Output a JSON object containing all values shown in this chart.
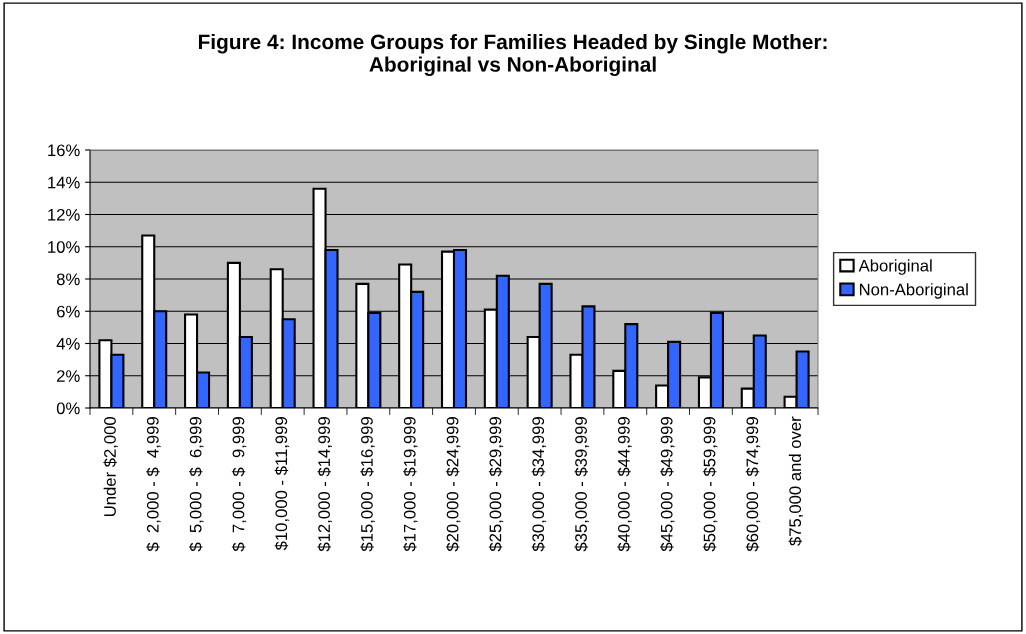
{
  "chart_data": {
    "type": "bar",
    "title": "Figure 4: Income Groups for Families Headed by Single Mother:\nAboriginal vs Non-Aboriginal",
    "categories": [
      "Under $2,000",
      "$  2,000 - $  4,999",
      "$  5,000 - $  6,999",
      "$  7,000 - $  9,999",
      "$10,000 - $11,999",
      "$12,000 - $14,999",
      "$15,000 - $16,999",
      "$17,000 - $19,999",
      "$20,000 - $24,999",
      "$25,000 - $29,999",
      "$30,000 - $34,999",
      "$35,000 - $39,999",
      "$40,000 - $44,999",
      "$45,000 - $49,999",
      "$50,000 - $59,999",
      "$60,000 - $74,999",
      "$75,000 and over"
    ],
    "series": [
      {
        "name": "Aboriginal",
        "color": "#ffffff",
        "values": [
          4.2,
          10.7,
          5.8,
          9.0,
          8.6,
          13.6,
          7.7,
          8.9,
          9.7,
          6.1,
          4.4,
          3.3,
          2.3,
          1.4,
          1.9,
          1.2,
          0.7
        ]
      },
      {
        "name": "Non-Aboriginal",
        "color": "#3366ff",
        "values": [
          3.3,
          6.0,
          2.2,
          4.4,
          5.5,
          9.8,
          5.9,
          7.2,
          9.8,
          8.2,
          7.7,
          6.3,
          5.2,
          4.1,
          5.9,
          4.5,
          3.5
        ]
      }
    ],
    "ylim": [
      0,
      16
    ],
    "yticks": [
      {
        "value": 0,
        "label": "0%"
      },
      {
        "value": 2,
        "label": "2%"
      },
      {
        "value": 4,
        "label": "4%"
      },
      {
        "value": 6,
        "label": "6%"
      },
      {
        "value": 8,
        "label": "8%"
      },
      {
        "value": 10,
        "label": "10%"
      },
      {
        "value": 12,
        "label": "12%"
      },
      {
        "value": 14,
        "label": "14%"
      },
      {
        "value": 16,
        "label": "16%"
      }
    ],
    "grid": "y",
    "legend": "right"
  }
}
